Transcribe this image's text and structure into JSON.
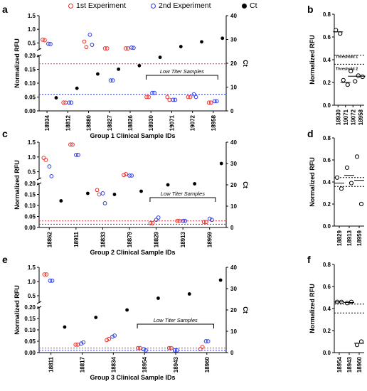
{
  "legend": [
    {
      "label": "1st Experiment",
      "marker": "open-circle",
      "color": "#e8302b"
    },
    {
      "label": "2nd Experiment",
      "marker": "open-circle",
      "color": "#2b3be8"
    },
    {
      "label": "Ct",
      "marker": "filled-circle",
      "color": "#000000"
    }
  ],
  "colors": {
    "exp1": "#e8302b",
    "exp2": "#2b3be8",
    "ct": "#000000",
    "red_threshold": "#e8302b",
    "blue_threshold": "#2b3be8"
  },
  "chart_data": [
    {
      "panel": "a",
      "type": "scatter",
      "xlabel": "Group 1 Clinical Sample IDs",
      "ylabel": "Normalized RFU",
      "y2label": "Ct",
      "categories": [
        "18934",
        "18812",
        "18880",
        "18827",
        "18826",
        "18930",
        "19071",
        "19072",
        "18958"
      ],
      "y_axis_lower": {
        "range": [
          0,
          0.2
        ],
        "ticks": [
          "0.00",
          "0.05",
          "0.10",
          "0.15",
          "0.20"
        ]
      },
      "y_axis_upper": {
        "range": [
          0.25,
          1.5
        ],
        "ticks": [
          "0.5",
          "1.0",
          "1.5"
        ]
      },
      "y2_axis": {
        "range": [
          0,
          40
        ],
        "ticks": [
          "0",
          "10",
          "20",
          "30",
          "40"
        ]
      },
      "series": [
        {
          "name": "1st Experiment",
          "values": [
            [
              0.62,
              0.6
            ],
            [
              0.03,
              0.03
            ],
            [
              0.55,
              0.35
            ],
            [
              0.3,
              0.3
            ],
            [
              0.3,
              0.3
            ],
            [
              0.05,
              0.05
            ],
            [
              0.05,
              0.04
            ],
            [
              0.05,
              0.05
            ],
            [
              0.03,
              0.03
            ]
          ]
        },
        {
          "name": "2nd Experiment",
          "values": [
            [
              0.47,
              0.46
            ],
            [
              0.03,
              0.03
            ],
            [
              0.8,
              0.43
            ],
            [
              0.11,
              0.11
            ],
            [
              0.33,
              0.32
            ],
            [
              0.065,
              0.065
            ],
            [
              0.04,
              0.04
            ],
            [
              0.06,
              0.05
            ],
            [
              0.035,
              0.035
            ]
          ]
        },
        {
          "name": "Ct",
          "values": [
            5.5,
            9.5,
            15.5,
            17.5,
            19,
            22.5,
            27,
            29,
            30.5
          ]
        }
      ],
      "thresholds": [
        {
          "color": "red",
          "value": 0.17
        },
        {
          "color": "blue",
          "value": 0.06
        }
      ],
      "annotation": {
        "text": "Low Titer Samples",
        "from": "18930",
        "to": "18958"
      }
    },
    {
      "panel": "b",
      "type": "scatter",
      "ylabel": "Normalized RFU",
      "categories": [
        "18930",
        "19071",
        "19072",
        "18958"
      ],
      "y_axis": {
        "range": [
          0,
          0.8
        ],
        "ticks": [
          "0.0",
          "0.2",
          "0.4",
          "0.6",
          "0.8"
        ]
      },
      "values": [
        [
          0.66,
          0.63
        ],
        [
          0.22,
          0.18
        ],
        [
          0.3,
          0.21
        ],
        [
          0.26,
          0.25
        ]
      ],
      "means": [
        0.645,
        0.2,
        0.255,
        0.255
      ],
      "thresholds": [
        {
          "label": "Threshold 1",
          "value": 0.44
        },
        {
          "label": "Threshold 2",
          "value": 0.36
        }
      ]
    },
    {
      "panel": "c",
      "type": "scatter",
      "xlabel": "Group 2 Clinical Sample IDs",
      "ylabel": "Normalized RFU",
      "y2label": "Ct",
      "categories": [
        "18862",
        "18911",
        "18833",
        "18879",
        "18829",
        "18913",
        "18959"
      ],
      "y_axis_lower": {
        "range": [
          0,
          0.2
        ],
        "ticks": [
          "0.00",
          "0.05",
          "0.10",
          "0.15",
          "0.20"
        ]
      },
      "y_axis_upper": {
        "range": [
          0.25,
          1.5
        ],
        "ticks": [
          "0.5",
          "1.0",
          "1.5"
        ]
      },
      "y2_axis": {
        "range": [
          0,
          40
        ],
        "ticks": [
          "0",
          "10",
          "20",
          "30",
          "40"
        ]
      },
      "series": [
        {
          "name": "1st Experiment",
          "values": [
            [
              0.97,
              0.9
            ],
            [
              1.42,
              1.42
            ],
            [
              0.17,
              0.15
            ],
            [
              0.39,
              0.42
            ],
            [
              0.02,
              0.02
            ],
            [
              0.03,
              0.03
            ],
            [
              0.025,
              0.025
            ]
          ]
        },
        {
          "name": "2nd Experiment",
          "values": [
            [
              0.68,
              0.35
            ],
            [
              1.07,
              1.07
            ],
            [
              0.155,
              0.11
            ],
            [
              0.37,
              0.37
            ],
            [
              0.035,
              0.045
            ],
            [
              0.03,
              0.03
            ],
            [
              0.04,
              0.035
            ]
          ]
        },
        {
          "name": "Ct",
          "values": [
            12.5,
            16,
            15.5,
            17,
            20,
            20.5,
            30
          ]
        }
      ],
      "thresholds": [
        {
          "color": "red",
          "value": 0.03
        },
        {
          "color": "blue",
          "value": 0.015
        }
      ],
      "annotation": {
        "text": "Low Titer Samples",
        "from": "18829",
        "to": "18959"
      }
    },
    {
      "panel": "d",
      "type": "scatter",
      "ylabel": "Normalized RFU",
      "categories": [
        "18829",
        "18913",
        "18959"
      ],
      "y_axis": {
        "range": [
          0,
          0.8
        ],
        "ticks": [
          "0.0",
          "0.2",
          "0.4",
          "0.6",
          "0.8"
        ]
      },
      "values": [
        [
          0.44,
          0.34
        ],
        [
          0.53,
          0.39
        ],
        [
          0.63,
          0.2
        ]
      ],
      "means": [
        0.39,
        0.46,
        0.415
      ],
      "thresholds": [
        {
          "value": 0.44
        },
        {
          "value": 0.36
        }
      ]
    },
    {
      "panel": "e",
      "type": "scatter",
      "xlabel": "Group 3 Clinical Sample IDs",
      "ylabel": "Normalized RFU",
      "y2label": "Ct",
      "categories": [
        "18811",
        "18817",
        "18834",
        "18954",
        "18943",
        "18960"
      ],
      "y_axis_lower": {
        "range": [
          0,
          0.2
        ],
        "ticks": [
          "0.00",
          "0.05",
          "0.10",
          "0.15",
          "0.20"
        ]
      },
      "y_axis_upper": {
        "range": [
          0.25,
          1.5
        ],
        "ticks": [
          "0.5",
          "1.0",
          "1.5"
        ]
      },
      "y2_axis": {
        "range": [
          0,
          40
        ],
        "ticks": [
          "0",
          "10",
          "20",
          "30",
          "40"
        ]
      },
      "series": [
        {
          "name": "1st Experiment",
          "values": [
            [
              1.25,
              1.25
            ],
            [
              0.035,
              0.035
            ],
            [
              0.055,
              0.06
            ],
            [
              0.02,
              0.02
            ],
            [
              0.02,
              0.02
            ],
            [
              0.015,
              0.025
            ]
          ]
        },
        {
          "name": "2nd Experiment",
          "values": [
            [
              1.03,
              1.03
            ],
            [
              0.04,
              0.045
            ],
            [
              0.07,
              0.075
            ],
            [
              0.015,
              0.01
            ],
            [
              0.01,
              0.01
            ],
            [
              0.05,
              0.05
            ]
          ]
        },
        {
          "name": "Ct",
          "values": [
            12,
            16.5,
            20,
            25.5,
            27.5,
            34
          ]
        }
      ],
      "thresholds": [
        {
          "color": "red",
          "value": 0.02
        },
        {
          "color": "blue",
          "value": 0.01
        }
      ],
      "annotation": {
        "text": "Low Titer Samples",
        "from": "18954",
        "to": "18960"
      }
    },
    {
      "panel": "f",
      "type": "scatter",
      "ylabel": "Normalized RFU",
      "categories": [
        "18954",
        "18943",
        "18960"
      ],
      "y_axis": {
        "range": [
          0,
          0.8
        ],
        "ticks": [
          "0.0",
          "0.2",
          "0.4",
          "0.6",
          "0.8"
        ]
      },
      "values": [
        [
          0.46,
          0.46
        ],
        [
          0.45,
          0.46
        ],
        [
          0.07,
          0.1
        ]
      ],
      "means": [
        0.46,
        0.455,
        0.085
      ],
      "thresholds": [
        {
          "value": 0.44
        },
        {
          "value": 0.36
        }
      ]
    }
  ]
}
